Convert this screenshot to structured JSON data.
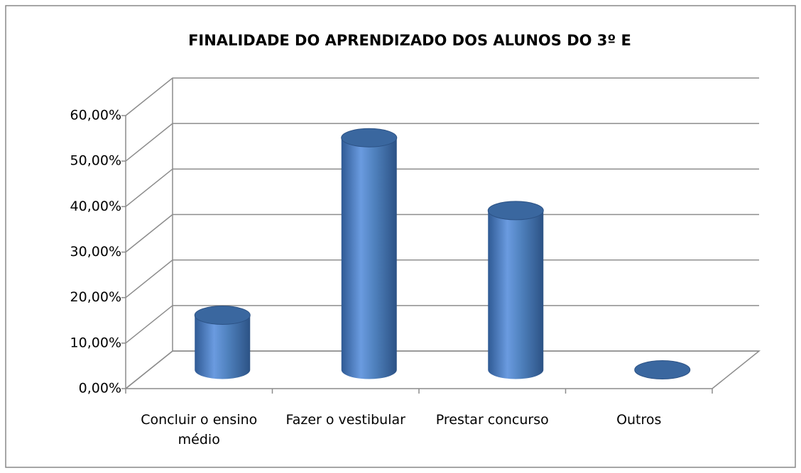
{
  "chart_data": {
    "type": "bar3d-cylinder",
    "title": "FINALIDADE DO APRENDIZADO DOS ALUNOS DO 3º E",
    "categories": [
      "Concluir o ensino médio",
      "Fazer o vestibular",
      "Prestar concurso",
      "Outros"
    ],
    "values": [
      12,
      51,
      35,
      0
    ],
    "color": "#4f81bd",
    "ylim": [
      0,
      60
    ],
    "yticks": [
      {
        "value": 0,
        "label": "0,00%"
      },
      {
        "value": 10,
        "label": "10,00%"
      },
      {
        "value": 20,
        "label": "20,00%"
      },
      {
        "value": 30,
        "label": "30,00%"
      },
      {
        "value": 40,
        "label": "40,00%"
      },
      {
        "value": 50,
        "label": "50,00%"
      },
      {
        "value": 60,
        "label": "60,00%"
      }
    ],
    "grid": true
  }
}
